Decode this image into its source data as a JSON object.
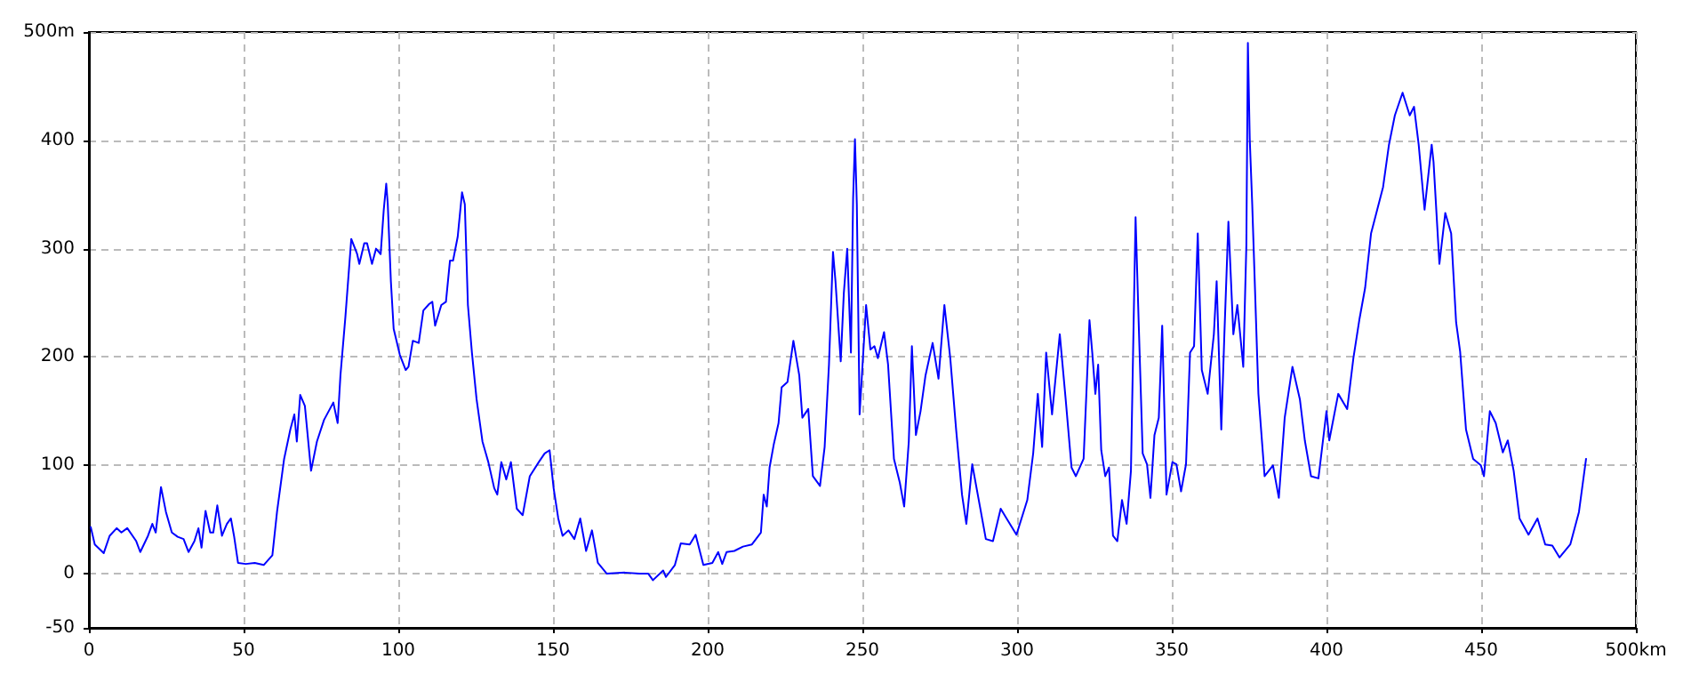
{
  "chart_data": {
    "type": "line",
    "x": [
      0.6,
      1.9,
      4.8,
      6.7,
      9,
      10.5,
      12.4,
      15.3,
      16.6,
      19.1,
      20.5,
      21.6,
      23.3,
      24.9,
      26.8,
      28.7,
      30.6,
      32.2,
      34.1,
      35.4,
      36.4,
      37.7,
      39.2,
      40.2,
      41.5,
      43,
      44.6,
      45.9,
      46.9,
      48.2,
      50.7,
      53.6,
      56.5,
      59.3,
      60.8,
      63.1,
      65.1,
      66.4,
      67.2,
      68.3,
      69.8,
      71.8,
      73.7,
      76,
      79,
      80.4,
      81.3,
      82.9,
      84.8,
      86.7,
      87.4,
      89,
      89.9,
      91.5,
      92.8,
      94.3,
      95.3,
      96.1,
      96.6,
      97.6,
      98.5,
      100.5,
      102.4,
      103.3,
      104.7,
      106.6,
      108.1,
      110,
      111,
      111.9,
      113.9,
      115.4,
      116.7,
      117.7,
      119.2,
      120.6,
      121.5,
      122.5,
      123.8,
      125.3,
      127.2,
      129.1,
      131,
      132,
      133.3,
      134.9,
      136.4,
      138.3,
      140.2,
      142.5,
      145.4,
      147.3,
      148.9,
      150.2,
      151.7,
      153.1,
      155,
      156.9,
      158.8,
      160.7,
      162.6,
      164.5,
      167.4,
      173.2,
      177.9,
      180.8,
      182.3,
      185.6,
      186.5,
      189.4,
      191.3,
      194.2,
      196.1,
      198.6,
      201.5,
      203.4,
      204.7,
      206.1,
      208.6,
      211.4,
      214.3,
      217.2,
      218.1,
      219.1,
      220,
      221.4,
      222.9,
      223.9,
      225.8,
      227.7,
      229.6,
      230.6,
      232.5,
      234,
      236.3,
      237.8,
      239.2,
      240.5,
      241.3,
      243,
      244,
      245.1,
      246.3,
      247,
      247.6,
      248.2,
      249.1,
      251.2,
      252.6,
      253.9,
      255,
      257,
      258.3,
      260.2,
      262.1,
      263.5,
      265,
      266,
      267.3,
      268.8,
      270.4,
      272.7,
      274.6,
      276.5,
      278.4,
      280.3,
      282.2,
      283.6,
      285.5,
      288,
      289.9,
      292.2,
      294.7,
      296.6,
      299.8,
      303.3,
      305.2,
      306.7,
      308.1,
      309.4,
      311.3,
      313.8,
      315.7,
      317.6,
      319,
      321.5,
      323.4,
      324.3,
      325.3,
      326.2,
      327.2,
      328.5,
      329.7,
      331,
      332.4,
      333.9,
      335.4,
      336.8,
      337.7,
      338.3,
      339.3,
      340.6,
      342,
      343.1,
      344.4,
      345.8,
      346.9,
      348.3,
      350.2,
      351.5,
      353,
      354.6,
      355.9,
      357.2,
      358.4,
      359.7,
      361.6,
      363.6,
      364.5,
      366,
      367,
      368.3,
      369.9,
      371.2,
      373.1,
      374.1,
      374.6,
      375.2,
      376,
      378,
      380,
      382.7,
      384.6,
      386.5,
      389,
      391.4,
      393,
      395,
      397.4,
      400,
      400.9,
      403.8,
      406.7,
      408.7,
      410.6,
      412.5,
      414.4,
      416.4,
      418.3,
      420.2,
      422.1,
      424.6,
      426.9,
      428.3,
      429.8,
      431.7,
      434,
      434.6,
      436.5,
      438.4,
      440.3,
      441.9,
      443.2,
      445.1,
      447.4,
      449.9,
      450.9,
      452.8,
      454.7,
      457,
      458.6,
      460.5,
      462.4,
      465.3,
      468.2,
      470.7,
      473,
      475.3,
      478.8,
      481.6,
      483.9
    ],
    "values": [
      43,
      27,
      19,
      35,
      42,
      38,
      42,
      30,
      20,
      35,
      46,
      38,
      80,
      57,
      38,
      34,
      32,
      20,
      30,
      42,
      24,
      58,
      38,
      38,
      63,
      35,
      46,
      51,
      35,
      10,
      9,
      10,
      8,
      17,
      57,
      106,
      133,
      147,
      122,
      165,
      155,
      95,
      122,
      142,
      158,
      139,
      183,
      237,
      309,
      295,
      286,
      305,
      305,
      286,
      300,
      295,
      336,
      360,
      341,
      270,
      226,
      202,
      188,
      191,
      215,
      213,
      243,
      249,
      251,
      229,
      248,
      251,
      289,
      289,
      311,
      352,
      341,
      248,
      204,
      161,
      122,
      103,
      79,
      73,
      103,
      87,
      103,
      60,
      54,
      90,
      103,
      111,
      114,
      79,
      51,
      35,
      40,
      32,
      51,
      21,
      40,
      10,
      0,
      1,
      0,
      0,
      -6,
      3,
      -3,
      8,
      28,
      27,
      36,
      8,
      10,
      20,
      9,
      20,
      21,
      25,
      27,
      38,
      73,
      62,
      98,
      120,
      139,
      172,
      177,
      215,
      183,
      144,
      152,
      90,
      81,
      117,
      193,
      297,
      270,
      196,
      259,
      300,
      204,
      346,
      401,
      341,
      147,
      248,
      207,
      210,
      199,
      223,
      193,
      106,
      84,
      62,
      122,
      210,
      128,
      150,
      183,
      213,
      180,
      248,
      199,
      133,
      73,
      46,
      101,
      62,
      32,
      30,
      60,
      51,
      36,
      68,
      111,
      166,
      117,
      204,
      147,
      221,
      161,
      98,
      90,
      106,
      234,
      204,
      166,
      193,
      114,
      90,
      98,
      35,
      30,
      68,
      46,
      95,
      237,
      329,
      232,
      111,
      101,
      70,
      128,
      144,
      229,
      73,
      103,
      101,
      76,
      101,
      204,
      210,
      314,
      188,
      166,
      221,
      270,
      133,
      221,
      325,
      221,
      248,
      191,
      303,
      490,
      401,
      341,
      166,
      90,
      100,
      70,
      144,
      191,
      161,
      123,
      90,
      88,
      150,
      123,
      166,
      152,
      199,
      234,
      264,
      314,
      336,
      357,
      396,
      423,
      444,
      423,
      431,
      396,
      336,
      396,
      380,
      286,
      333,
      314,
      232,
      205,
      133,
      106,
      100,
      90,
      150,
      139,
      112,
      123,
      95,
      51,
      36,
      51,
      27,
      26,
      15,
      27,
      57,
      106
    ],
    "color": "#0000ff",
    "xlim": [
      0,
      500
    ],
    "xticks": [
      0,
      50,
      100,
      150,
      200,
      250,
      300,
      350,
      400,
      450,
      {
        "value": 500,
        "label": "500km"
      }
    ],
    "ylim": [
      -50,
      500
    ],
    "yticks": [
      -50,
      0,
      100,
      200,
      300,
      400,
      {
        "value": 500,
        "label": "500m"
      }
    ],
    "grid": true,
    "marker": "none",
    "line_style": "solid"
  }
}
